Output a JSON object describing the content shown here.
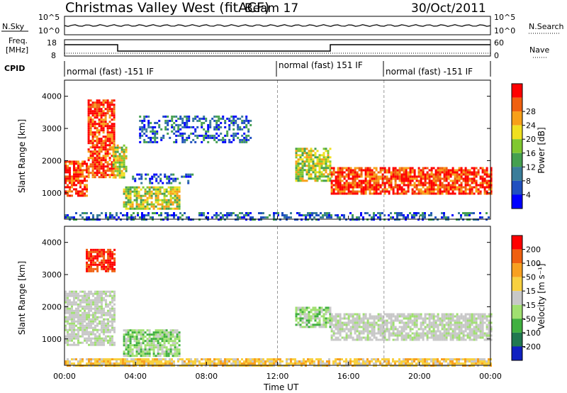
{
  "header": {
    "title": "Christmas Valley West (fitACF)",
    "beam": "Beam 17",
    "date": "30/Oct/2011"
  },
  "panels": {
    "nsky": {
      "left_label": "N.Sky",
      "left_ticks": [
        "10^5",
        "10^0"
      ],
      "right_ticks": [
        "10^5",
        "10^0"
      ],
      "right_label": "N.Search"
    },
    "freq": {
      "left_label_line1": "Freq.",
      "left_label_line2": "[MHz]",
      "left_ticks": [
        "18",
        "8"
      ],
      "right_ticks": [
        "60",
        "0"
      ],
      "right_label": "Nave"
    },
    "cpid": {
      "label": "CPID",
      "segments": [
        {
          "text": "normal (fast) -151 IF",
          "start_hour": 0
        },
        {
          "text": "normal (fast) 151 IF",
          "start_hour": 12
        },
        {
          "text": "normal (fast) -151 IF",
          "start_hour": 18
        }
      ]
    }
  },
  "chart_data": [
    {
      "type": "heatmap",
      "name": "power",
      "ylabel": "Slant Range [km]",
      "yticks": [
        "1000",
        "2000",
        "3000",
        "4000"
      ],
      "xlim_hours": [
        0,
        24
      ],
      "ylim_km": [
        180,
        4500
      ],
      "colorbar": {
        "label": "Power [dB]",
        "ticks": [
          "4",
          "8",
          "12",
          "16",
          "20",
          "24",
          "28"
        ],
        "colors": [
          "#0000ff",
          "#2050c0",
          "#3a7d9a",
          "#45a050",
          "#80c830",
          "#f0e020",
          "#f8a018",
          "#f06010",
          "#ff0000"
        ]
      },
      "regions": [
        {
          "x": [
            0.0,
            1.3
          ],
          "y": [
            900,
            2000
          ],
          "level": "high"
        },
        {
          "x": [
            1.3,
            2.8
          ],
          "y": [
            1500,
            3900
          ],
          "level": "high"
        },
        {
          "x": [
            2.7,
            3.5
          ],
          "y": [
            1500,
            2500
          ],
          "level": "mid"
        },
        {
          "x": [
            3.3,
            6.5
          ],
          "y": [
            500,
            1200
          ],
          "level": "mid"
        },
        {
          "x": [
            3.8,
            7.2
          ],
          "y": [
            1300,
            1600
          ],
          "level": "low"
        },
        {
          "x": [
            4.2,
            10.5
          ],
          "y": [
            2600,
            3400
          ],
          "level": "low"
        },
        {
          "x": [
            13.0,
            15.0
          ],
          "y": [
            1400,
            2400
          ],
          "level": "mid"
        },
        {
          "x": [
            15.0,
            24.0
          ],
          "y": [
            1000,
            1800
          ],
          "level": "high"
        },
        {
          "x": [
            0.0,
            24.0
          ],
          "y": [
            180,
            400
          ],
          "level": "low"
        }
      ]
    },
    {
      "type": "heatmap",
      "name": "velocity",
      "ylabel": "Slant Range [km]",
      "yticks": [
        "1000",
        "2000",
        "3000",
        "4000"
      ],
      "xlim_hours": [
        0,
        24
      ],
      "ylim_km": [
        180,
        4500
      ],
      "xticks": [
        "00:00",
        "04:00",
        "08:00",
        "12:00",
        "16:00",
        "20:00",
        "00:00"
      ],
      "xlabel": "Time UT",
      "colorbar": {
        "label": "Velocity [m s⁻¹]",
        "ticks": [
          "200",
          "100",
          "50",
          "15",
          "-15",
          "-50",
          "-100",
          "-200"
        ],
        "colors": [
          "#1020c0",
          "#207850",
          "#40b040",
          "#a0e070",
          "#c8c8c8",
          "#f8d040",
          "#f8a020",
          "#f06010",
          "#ff0000"
        ]
      },
      "regions": [
        {
          "x": [
            0.0,
            2.8
          ],
          "y": [
            800,
            2500
          ],
          "level": "gray"
        },
        {
          "x": [
            1.2,
            2.8
          ],
          "y": [
            3100,
            3800
          ],
          "level": "red"
        },
        {
          "x": [
            3.3,
            6.5
          ],
          "y": [
            500,
            1300
          ],
          "level": "green"
        },
        {
          "x": [
            13.0,
            15.0
          ],
          "y": [
            1400,
            2000
          ],
          "level": "green"
        },
        {
          "x": [
            15.0,
            24.0
          ],
          "y": [
            1000,
            1800
          ],
          "level": "gray"
        },
        {
          "x": [
            0.0,
            24.0
          ],
          "y": [
            180,
            400
          ],
          "level": "orange"
        }
      ]
    }
  ],
  "colors": {
    "frame": "#000000",
    "dashed_marker": "#999999"
  }
}
